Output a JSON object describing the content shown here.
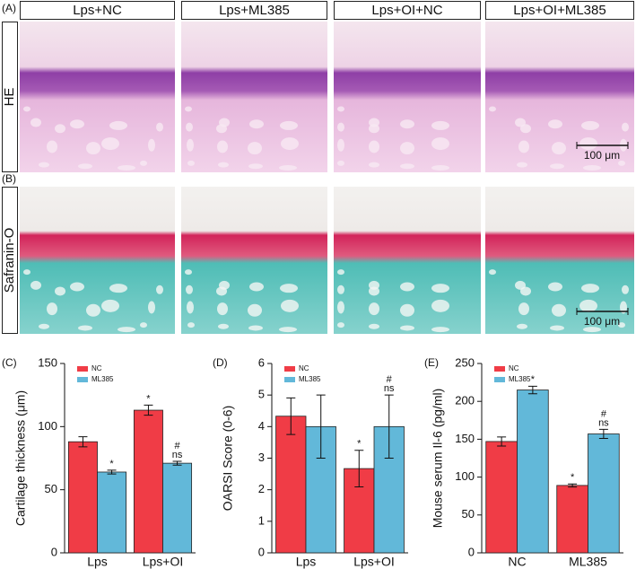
{
  "figure": {
    "panel_labels": [
      "(A)",
      "(B)"
    ],
    "groups": [
      "Lps+NC",
      "Lps+ML385",
      "Lps+OI+NC",
      "Lps+OI+ML385"
    ],
    "stains": [
      "HE",
      "Safranin-O"
    ],
    "scale_bar": "100 μm"
  },
  "chart_data": [
    {
      "type": "bar",
      "panel": "(C)",
      "y_label": "Cartilage thickness (μm)",
      "categories": [
        "Lps",
        "Lps+OI"
      ],
      "series": [
        {
          "name": "NC",
          "color": "#f03c46",
          "values": [
            88,
            113
          ],
          "errors": [
            4,
            4
          ],
          "annotations": [
            null,
            [
              "*"
            ]
          ]
        },
        {
          "name": "ML385",
          "color": "#62b8d9",
          "values": [
            64,
            71
          ],
          "errors": [
            1.5,
            1.5
          ],
          "annotations": [
            [
              "*"
            ],
            [
              "#",
              "ns"
            ]
          ]
        }
      ],
      "ylim": [
        0,
        150
      ],
      "yticks": [
        0,
        50,
        100,
        150
      ],
      "legend": "upper left"
    },
    {
      "type": "bar",
      "panel": "(D)",
      "y_label": "OARSI Score (0-6)",
      "categories": [
        "Lps",
        "Lps+OI"
      ],
      "series": [
        {
          "name": "NC",
          "color": "#f03c46",
          "values": [
            4.33,
            2.67
          ],
          "errors": [
            0.58,
            0.58
          ],
          "annotations": [
            null,
            [
              "*"
            ]
          ]
        },
        {
          "name": "ML385",
          "color": "#62b8d9",
          "values": [
            4.0,
            4.0
          ],
          "errors": [
            1.0,
            1.0
          ],
          "annotations": [
            null,
            [
              "#",
              "ns"
            ]
          ]
        }
      ],
      "ylim": [
        0,
        6
      ],
      "yticks": [
        0,
        1,
        2,
        3,
        4,
        5,
        6
      ],
      "legend": "upper left"
    },
    {
      "type": "bar",
      "panel": "(E)",
      "y_label": "Mouse serum Il-6 (pg/ml)",
      "categories": [
        "NC",
        "ML385"
      ],
      "series": [
        {
          "name": "NC",
          "color": "#f03c46",
          "values": [
            147,
            89
          ],
          "errors": [
            6,
            2
          ],
          "annotations": [
            null,
            [
              "*"
            ]
          ]
        },
        {
          "name": "ML385",
          "color": "#62b8d9",
          "values": [
            215,
            157
          ],
          "errors": [
            5,
            6
          ],
          "annotations": [
            [
              "*"
            ],
            [
              "#",
              "ns"
            ]
          ]
        }
      ],
      "ylim": [
        0,
        250
      ],
      "yticks": [
        0,
        50,
        100,
        150,
        200,
        250
      ],
      "legend": "upper left"
    }
  ]
}
